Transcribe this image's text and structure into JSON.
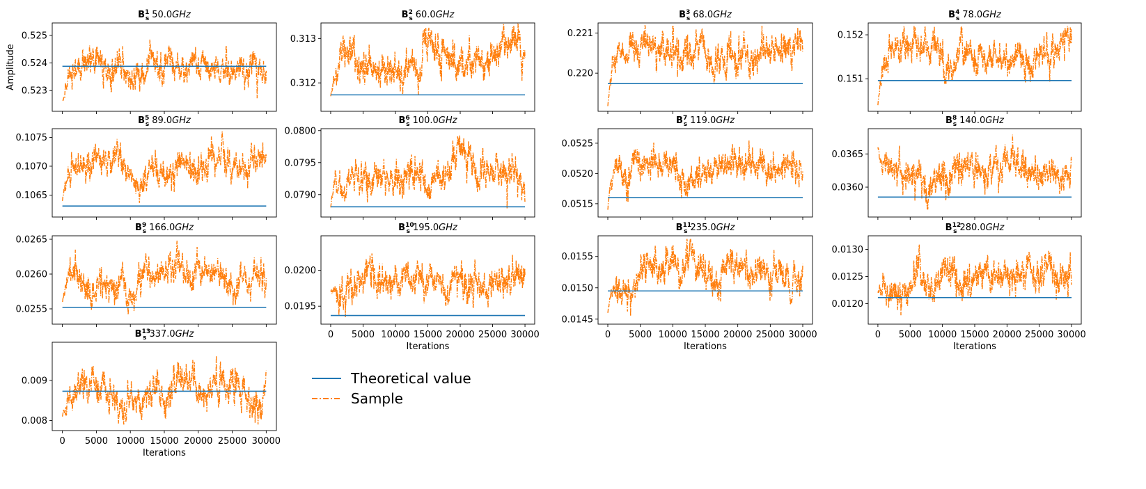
{
  "figure": {
    "ylabel": "Amplitude",
    "xlabel": "Iterations",
    "colors": {
      "theory": "#1f77b4",
      "sample": "#ff7f0e"
    }
  },
  "legend": {
    "theory_label": "Theoretical value",
    "sample_label": "Sample"
  },
  "chart_data": [
    {
      "type": "line",
      "title_bold": "B",
      "title_sub": "s",
      "title_sup": "1",
      "title_freq": "50.0",
      "title_unit": "GHz",
      "x_range": [
        0,
        30000
      ],
      "ylim": [
        0.52225,
        0.52545
      ],
      "yticks": [
        0.523,
        0.524,
        0.525
      ],
      "ytick_labels": [
        "0.523",
        "0.524",
        "0.525"
      ],
      "xticks": [
        0,
        5000,
        10000,
        15000,
        20000,
        25000,
        30000
      ],
      "show_xticklabels": false,
      "show_ylabel": true,
      "show_xlabel": false,
      "theoretical": 0.52388,
      "sample_mean": 0.52385,
      "sample_start": 0.5224,
      "sample_min": 0.52265,
      "sample_max": 0.52535
    },
    {
      "type": "line",
      "title_bold": "B",
      "title_sub": "s",
      "title_sup": "2",
      "title_freq": "60.0",
      "title_unit": "GHz",
      "x_range": [
        0,
        30000
      ],
      "ylim": [
        0.31136,
        0.31335
      ],
      "yticks": [
        0.312,
        0.313
      ],
      "ytick_labels": [
        "0.312",
        "0.313"
      ],
      "xticks": [
        0,
        5000,
        10000,
        15000,
        20000,
        25000,
        30000
      ],
      "show_xticklabels": false,
      "show_ylabel": false,
      "show_xlabel": false,
      "theoretical": 0.31173,
      "sample_mean": 0.3125,
      "sample_start": 0.3117,
      "sample_min": 0.31142,
      "sample_max": 0.31332
    },
    {
      "type": "line",
      "title_bold": "B",
      "title_sub": "s",
      "title_sup": "3",
      "title_freq": "68.0",
      "title_unit": "GHz",
      "x_range": [
        0,
        30000
      ],
      "ylim": [
        0.21905,
        0.22125
      ],
      "yticks": [
        0.22,
        0.221
      ],
      "ytick_labels": [
        "0.220",
        "0.221"
      ],
      "xticks": [
        0,
        5000,
        10000,
        15000,
        20000,
        25000,
        30000
      ],
      "show_xticklabels": false,
      "show_ylabel": false,
      "show_xlabel": false,
      "theoretical": 0.21974,
      "sample_mean": 0.2205,
      "sample_start": 0.21918,
      "sample_min": 0.21918,
      "sample_max": 0.22118
    },
    {
      "type": "line",
      "title_bold": "B",
      "title_sub": "s",
      "title_sup": "4",
      "title_freq": "78.0",
      "title_unit": "GHz",
      "x_range": [
        0,
        30000
      ],
      "ylim": [
        0.15026,
        0.15227
      ],
      "yticks": [
        0.151,
        0.152
      ],
      "ytick_labels": [
        "0.151",
        "0.152"
      ],
      "xticks": [
        0,
        5000,
        10000,
        15000,
        20000,
        25000,
        30000
      ],
      "show_xticklabels": false,
      "show_ylabel": false,
      "show_xlabel": false,
      "theoretical": 0.15096,
      "sample_mean": 0.1515,
      "sample_start": 0.1504,
      "sample_min": 0.1504,
      "sample_max": 0.1522
    },
    {
      "type": "line",
      "title_bold": "B",
      "title_sub": "s",
      "title_sup": "5",
      "title_freq": "89.0",
      "title_unit": "GHz",
      "x_range": [
        0,
        30000
      ],
      "ylim": [
        0.10612,
        0.10765
      ],
      "yticks": [
        0.1065,
        0.107,
        0.1075
      ],
      "ytick_labels": [
        "0.1065",
        "0.1070",
        "0.1075"
      ],
      "xticks": [
        0,
        5000,
        10000,
        15000,
        20000,
        25000,
        30000
      ],
      "show_xticklabels": false,
      "show_ylabel": false,
      "show_xlabel": false,
      "theoretical": 0.10631,
      "sample_mean": 0.107,
      "sample_start": 0.1064,
      "sample_min": 0.10628,
      "sample_max": 0.1076
    },
    {
      "type": "line",
      "title_bold": "B",
      "title_sub": "s",
      "title_sup": "6",
      "title_freq": "100.0",
      "title_unit": "GHz",
      "x_range": [
        0,
        30000
      ],
      "ylim": [
        0.07865,
        0.08003
      ],
      "yticks": [
        0.079,
        0.0795,
        0.08
      ],
      "ytick_labels": [
        "0.0790",
        "0.0795",
        "0.0800"
      ],
      "xticks": [
        0,
        5000,
        10000,
        15000,
        20000,
        25000,
        30000
      ],
      "show_xticklabels": false,
      "show_ylabel": false,
      "show_xlabel": false,
      "theoretical": 0.07881,
      "sample_mean": 0.07935,
      "sample_start": 0.0788,
      "sample_min": 0.07873,
      "sample_max": 0.07998
    },
    {
      "type": "line",
      "title_bold": "B",
      "title_sub": "s",
      "title_sup": "7",
      "title_freq": "119.0",
      "title_unit": "GHz",
      "x_range": [
        0,
        30000
      ],
      "ylim": [
        0.05128,
        0.05274
      ],
      "yticks": [
        0.0515,
        0.052,
        0.0525
      ],
      "ytick_labels": [
        "0.0515",
        "0.0520",
        "0.0525"
      ],
      "xticks": [
        0,
        5000,
        10000,
        15000,
        20000,
        25000,
        30000
      ],
      "show_xticklabels": false,
      "show_ylabel": false,
      "show_xlabel": false,
      "theoretical": 0.0516,
      "sample_mean": 0.0521,
      "sample_start": 0.0514,
      "sample_min": 0.0514,
      "sample_max": 0.05268
    },
    {
      "type": "line",
      "title_bold": "B",
      "title_sub": "s",
      "title_sup": "8",
      "title_freq": "140.0",
      "title_unit": "GHz",
      "x_range": [
        0,
        30000
      ],
      "ylim": [
        0.03555,
        0.03688
      ],
      "yticks": [
        0.036,
        0.0365
      ],
      "ytick_labels": [
        "0.0360",
        "0.0365"
      ],
      "xticks": [
        0,
        5000,
        10000,
        15000,
        20000,
        25000,
        30000
      ],
      "show_xticklabels": false,
      "show_ylabel": false,
      "show_xlabel": false,
      "theoretical": 0.03585,
      "sample_mean": 0.03625,
      "sample_start": 0.0366,
      "sample_min": 0.0356,
      "sample_max": 0.03682
    },
    {
      "type": "line",
      "title_bold": "B",
      "title_sub": "s",
      "title_sup": "9",
      "title_freq": "166.0",
      "title_unit": "GHz",
      "x_range": [
        0,
        30000
      ],
      "ylim": [
        0.02528,
        0.02655
      ],
      "yticks": [
        0.0255,
        0.026,
        0.0265
      ],
      "ytick_labels": [
        "0.0255",
        "0.0260",
        "0.0265"
      ],
      "xticks": [
        0,
        5000,
        10000,
        15000,
        20000,
        25000,
        30000
      ],
      "show_xticklabels": false,
      "show_ylabel": false,
      "show_xlabel": false,
      "theoretical": 0.02552,
      "sample_mean": 0.0259,
      "sample_start": 0.0256,
      "sample_min": 0.02535,
      "sample_max": 0.02648
    },
    {
      "type": "line",
      "title_bold": "B",
      "title_sub": "s",
      "title_sup": "10",
      "title_freq": "195.0",
      "title_unit": "GHz",
      "x_range": [
        0,
        30000
      ],
      "ylim": [
        0.01925,
        0.02048
      ],
      "yticks": [
        0.0195,
        0.02
      ],
      "ytick_labels": [
        "0.0195",
        "0.0200"
      ],
      "xticks": [
        0,
        5000,
        10000,
        15000,
        20000,
        25000,
        30000
      ],
      "x_tick_labels": [
        "0",
        "5000",
        "10000",
        "15000",
        "20000",
        "25000",
        "30000"
      ],
      "show_xticklabels": true,
      "show_ylabel": false,
      "show_xlabel": true,
      "theoretical": 0.01937,
      "sample_mean": 0.01985,
      "sample_start": 0.0197,
      "sample_min": 0.01932,
      "sample_max": 0.02044
    },
    {
      "type": "line",
      "title_bold": "B",
      "title_sub": "s",
      "title_sup": "11",
      "title_freq": "235.0",
      "title_unit": "GHz",
      "x_range": [
        0,
        30000
      ],
      "ylim": [
        0.01442,
        0.01583
      ],
      "yticks": [
        0.0145,
        0.015,
        0.0155
      ],
      "ytick_labels": [
        "0.0145",
        "0.0150",
        "0.0155"
      ],
      "xticks": [
        0,
        5000,
        10000,
        15000,
        20000,
        25000,
        30000
      ],
      "x_tick_labels": [
        "0",
        "5000",
        "10000",
        "15000",
        "20000",
        "25000",
        "30000"
      ],
      "show_xticklabels": true,
      "show_ylabel": false,
      "show_xlabel": true,
      "theoretical": 0.01495,
      "sample_mean": 0.01515,
      "sample_start": 0.0146,
      "sample_min": 0.01452,
      "sample_max": 0.01578
    },
    {
      "type": "line",
      "title_bold": "B",
      "title_sub": "s",
      "title_sup": "12",
      "title_freq": "280.0",
      "title_unit": "GHz",
      "x_range": [
        0,
        30000
      ],
      "ylim": [
        0.01162,
        0.01325
      ],
      "yticks": [
        0.012,
        0.0125,
        0.013
      ],
      "ytick_labels": [
        "0.0120",
        "0.0125",
        "0.0130"
      ],
      "xticks": [
        0,
        5000,
        10000,
        15000,
        20000,
        25000,
        30000
      ],
      "x_tick_labels": [
        "0",
        "5000",
        "10000",
        "15000",
        "20000",
        "25000",
        "30000"
      ],
      "show_xticklabels": true,
      "show_ylabel": false,
      "show_xlabel": true,
      "theoretical": 0.01211,
      "sample_mean": 0.01245,
      "sample_start": 0.0122,
      "sample_min": 0.0117,
      "sample_max": 0.0132
    },
    {
      "type": "line",
      "title_bold": "B",
      "title_sub": "s",
      "title_sup": "13",
      "title_freq": "337.0",
      "title_unit": "GHz",
      "x_range": [
        0,
        30000
      ],
      "ylim": [
        0.00775,
        0.00995
      ],
      "yticks": [
        0.008,
        0.009
      ],
      "ytick_labels": [
        "0.008",
        "0.009"
      ],
      "xticks": [
        0,
        5000,
        10000,
        15000,
        20000,
        25000,
        30000
      ],
      "x_tick_labels": [
        "0",
        "5000",
        "10000",
        "15000",
        "20000",
        "25000",
        "30000"
      ],
      "show_xticklabels": true,
      "show_ylabel": false,
      "show_xlabel": true,
      "theoretical": 0.00873,
      "sample_mean": 0.0087,
      "sample_start": 0.0081,
      "sample_min": 0.0079,
      "sample_max": 0.00985
    }
  ]
}
